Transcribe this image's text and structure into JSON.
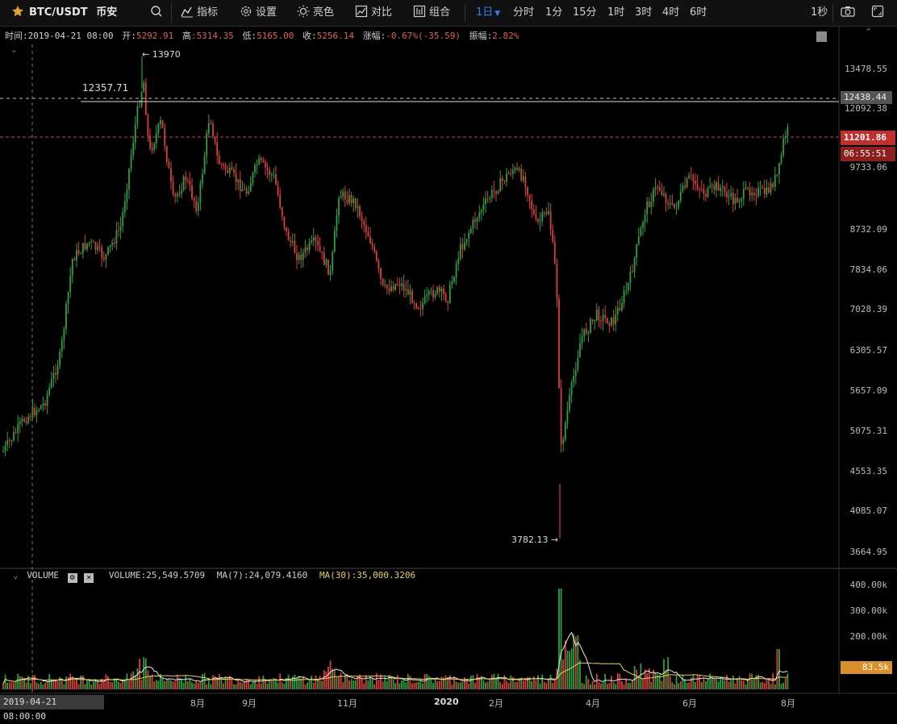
{
  "toolbar": {
    "symbol": "BTC/USDT",
    "exchange": "币安",
    "indicators_label": "指标",
    "settings_label": "设置",
    "brightness_label": "亮色",
    "compare_label": "对比",
    "combine_label": "组合",
    "intervals": [
      "1日",
      "分时",
      "1分",
      "15分",
      "1时",
      "3时",
      "4时",
      "6时"
    ],
    "active_interval": "1日",
    "refresh_label": "1秒"
  },
  "info": {
    "time_label": "时间:",
    "time_value": "2019-04-21 08:00",
    "open_label": "开:",
    "open_value": "5292.91",
    "high_label": "高",
    "high_value": ":5314.35",
    "low_label": "低:",
    "low_value": "5165.00",
    "close_label": "收:",
    "close_value": "5256.14",
    "change_label": "涨幅:",
    "change_value": "-0.67%(-35.59)",
    "amp_label": "振幅:",
    "amp_value": "2.82%"
  },
  "price_axis": {
    "labels": [
      "13478.55",
      "12092.38",
      "9733.06",
      "8732.09",
      "7834.06",
      "7028.39",
      "6305.57",
      "5657.09",
      "5075.31",
      "4553.35",
      "4085.07",
      "3664.95"
    ],
    "tag_top": "12438.44",
    "tag_current": "11201.86",
    "tag_countdown": "06:55:51"
  },
  "annotations": {
    "max": "13970",
    "min": "3782.13",
    "hline": "12357.71"
  },
  "volume": {
    "title": "VOLUME",
    "volume_text": "VOLUME:25,549.5709",
    "ma7_text": "MA(7):24,079.4160",
    "ma30_text": "MA(30):35,000.3206",
    "axis_labels": [
      "400.00k",
      "300.00k",
      "200.00k"
    ],
    "tag": "83.5k"
  },
  "time_axis": {
    "labels": [
      "8月",
      "9月",
      "11月",
      "2020",
      "2月",
      "4月",
      "6月",
      "8月"
    ],
    "crosshair_date": "2019-04-21 08:00:00"
  },
  "colors": {
    "up": "#2ea043",
    "down": "#d8403c",
    "accent": "#2f7cf6",
    "ma30": "#e8d44d"
  },
  "chart_data": {
    "type": "candlestick",
    "interval": "1日",
    "y_range": [
      3664.95,
      13478.55
    ],
    "monthly_close_approx": {
      "x": [
        "2019-04",
        "2019-05",
        "2019-06",
        "2019-07",
        "2019-08",
        "2019-09",
        "2019-10",
        "2019-11",
        "2019-12",
        "2020-01",
        "2020-02",
        "2020-03",
        "2020-04",
        "2020-05",
        "2020-06",
        "2020-07"
      ],
      "y": [
        5300,
        8500,
        10800,
        10100,
        9600,
        8300,
        9200,
        7500,
        7200,
        9350,
        8550,
        6400,
        8700,
        9450,
        9150,
        11201.86
      ]
    }
  }
}
